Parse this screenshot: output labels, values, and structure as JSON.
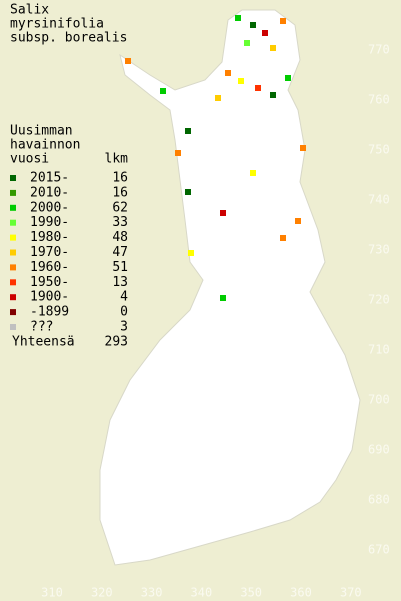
{
  "title": [
    "Salix",
    "myrsinifolia",
    "subsp. borealis"
  ],
  "legend": {
    "header": [
      "Uusimman",
      "havainnon",
      "vuosi"
    ],
    "count_header": "lkm",
    "items": [
      {
        "label": "2015-",
        "count": "16",
        "color": "#006600"
      },
      {
        "label": "2010-",
        "count": "16",
        "color": "#339900"
      },
      {
        "label": "2000-",
        "count": "62",
        "color": "#00cc00"
      },
      {
        "label": "1990-",
        "count": "33",
        "color": "#66ff33"
      },
      {
        "label": "1980-",
        "count": "48",
        "color": "#ffff00"
      },
      {
        "label": "1970-",
        "count": "47",
        "color": "#ffcc00"
      },
      {
        "label": "1960-",
        "count": "51",
        "color": "#ff8000"
      },
      {
        "label": "1950-",
        "count": "13",
        "color": "#ff3300"
      },
      {
        "label": "1900-",
        "count": "4",
        "color": "#cc0000"
      },
      {
        "label": "-1899",
        "count": "0",
        "color": "#800000"
      },
      {
        "label": "???",
        "count": "3",
        "color": "#c0c0c0"
      }
    ],
    "total_label": "Yhteensä",
    "total": "293"
  },
  "axes": {
    "x_labels": [
      310,
      320,
      330,
      340,
      350,
      360,
      370
    ],
    "y_labels": [
      770,
      760,
      750,
      740,
      730,
      720,
      710,
      700,
      690,
      680,
      670
    ]
  }
}
